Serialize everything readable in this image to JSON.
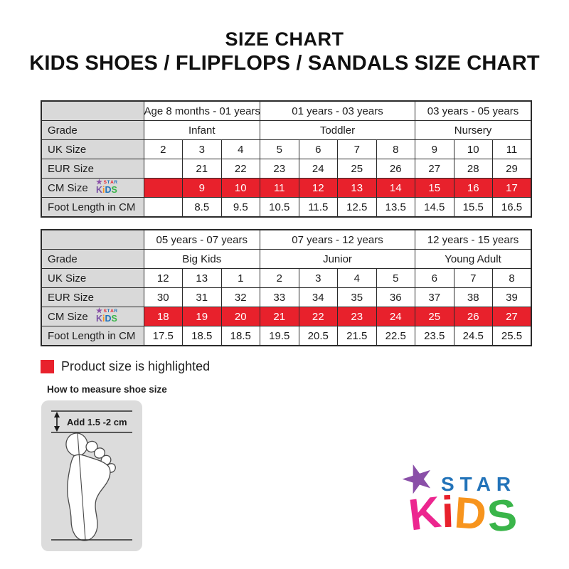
{
  "title": "SIZE CHART",
  "subtitle": "KIDS SHOES / FLIPFLOPS / SANDALS SIZE CHART",
  "colors": {
    "highlight": "#e8212c",
    "label_bg": "#d9d9d9",
    "border": "#2b2b2b"
  },
  "tables": [
    {
      "name": "size-table-infant-toddler-nursery",
      "data_columns": 10,
      "rows": [
        {
          "cells": [
            {
              "t": "",
              "cls": "label"
            },
            {
              "t": "Age 8 months - 01 years",
              "span": 3,
              "cls": "grp"
            },
            {
              "t": "01 years - 03 years",
              "span": 4,
              "cls": "grp"
            },
            {
              "t": "03 years - 05 years",
              "span": 3,
              "cls": "grp"
            }
          ]
        },
        {
          "cells": [
            {
              "t": "Grade",
              "cls": "label"
            },
            {
              "t": "Infant",
              "span": 3,
              "cls": "grp"
            },
            {
              "t": "Toddler",
              "span": 4,
              "cls": "grp"
            },
            {
              "t": "Nursery",
              "span": 3,
              "cls": "grp"
            }
          ]
        },
        {
          "cells": [
            {
              "t": "UK Size",
              "cls": "label"
            },
            {
              "t": "2"
            },
            {
              "t": "3"
            },
            {
              "t": "4"
            },
            {
              "t": "5"
            },
            {
              "t": "6"
            },
            {
              "t": "7"
            },
            {
              "t": "8"
            },
            {
              "t": "9"
            },
            {
              "t": "10"
            },
            {
              "t": "11"
            }
          ]
        },
        {
          "cells": [
            {
              "t": "EUR Size",
              "cls": "label"
            },
            {
              "t": ""
            },
            {
              "t": "21"
            },
            {
              "t": "22"
            },
            {
              "t": "23"
            },
            {
              "t": "24"
            },
            {
              "t": "25"
            },
            {
              "t": "26"
            },
            {
              "t": "27"
            },
            {
              "t": "28"
            },
            {
              "t": "29"
            }
          ]
        },
        {
          "cells": [
            {
              "t": "CM Size",
              "cls": "label logo-cell",
              "logo": true
            },
            {
              "t": "",
              "cls": "hl"
            },
            {
              "t": "9",
              "cls": "hl"
            },
            {
              "t": "10",
              "cls": "hl"
            },
            {
              "t": "11",
              "cls": "hl"
            },
            {
              "t": "12",
              "cls": "hl"
            },
            {
              "t": "13",
              "cls": "hl"
            },
            {
              "t": "14",
              "cls": "hl"
            },
            {
              "t": "15",
              "cls": "hl"
            },
            {
              "t": "16",
              "cls": "hl"
            },
            {
              "t": "17",
              "cls": "hl"
            }
          ]
        },
        {
          "cells": [
            {
              "t": "Foot Length in CM",
              "cls": "label"
            },
            {
              "t": ""
            },
            {
              "t": "8.5"
            },
            {
              "t": "9.5"
            },
            {
              "t": "10.5"
            },
            {
              "t": "11.5"
            },
            {
              "t": "12.5"
            },
            {
              "t": "13.5"
            },
            {
              "t": "14.5"
            },
            {
              "t": "15.5"
            },
            {
              "t": "16.5"
            }
          ]
        }
      ]
    },
    {
      "name": "size-table-bigkids-junior-youngadult",
      "data_columns": 10,
      "rows": [
        {
          "cells": [
            {
              "t": "",
              "cls": "label"
            },
            {
              "t": "05 years - 07 years",
              "span": 3,
              "cls": "grp"
            },
            {
              "t": "07 years - 12 years",
              "span": 4,
              "cls": "grp"
            },
            {
              "t": "12 years - 15 years",
              "span": 3,
              "cls": "grp"
            }
          ]
        },
        {
          "cells": [
            {
              "t": "Grade",
              "cls": "label"
            },
            {
              "t": "Big Kids",
              "span": 3,
              "cls": "grp"
            },
            {
              "t": "Junior",
              "span": 4,
              "cls": "grp"
            },
            {
              "t": "Young Adult",
              "span": 3,
              "cls": "grp"
            }
          ]
        },
        {
          "cells": [
            {
              "t": "UK Size",
              "cls": "label"
            },
            {
              "t": "12"
            },
            {
              "t": "13"
            },
            {
              "t": "1"
            },
            {
              "t": "2"
            },
            {
              "t": "3"
            },
            {
              "t": "4"
            },
            {
              "t": "5"
            },
            {
              "t": "6"
            },
            {
              "t": "7"
            },
            {
              "t": "8"
            }
          ]
        },
        {
          "cells": [
            {
              "t": "EUR Size",
              "cls": "label"
            },
            {
              "t": "30"
            },
            {
              "t": "31"
            },
            {
              "t": "32"
            },
            {
              "t": "33"
            },
            {
              "t": "34"
            },
            {
              "t": "35"
            },
            {
              "t": "36"
            },
            {
              "t": "37"
            },
            {
              "t": "38"
            },
            {
              "t": "39"
            }
          ]
        },
        {
          "cells": [
            {
              "t": "CM Size",
              "cls": "label logo-cell",
              "logo": true
            },
            {
              "t": "18",
              "cls": "hl"
            },
            {
              "t": "19",
              "cls": "hl"
            },
            {
              "t": "20",
              "cls": "hl"
            },
            {
              "t": "21",
              "cls": "hl"
            },
            {
              "t": "22",
              "cls": "hl"
            },
            {
              "t": "23",
              "cls": "hl"
            },
            {
              "t": "24",
              "cls": "hl"
            },
            {
              "t": "25",
              "cls": "hl"
            },
            {
              "t": "26",
              "cls": "hl"
            },
            {
              "t": "27",
              "cls": "hl"
            }
          ]
        },
        {
          "cells": [
            {
              "t": "Foot Length in CM",
              "cls": "label"
            },
            {
              "t": "17.5"
            },
            {
              "t": "18.5"
            },
            {
              "t": "18.5"
            },
            {
              "t": "19.5"
            },
            {
              "t": "20.5"
            },
            {
              "t": "21.5"
            },
            {
              "t": "22.5"
            },
            {
              "t": "23.5"
            },
            {
              "t": "24.5"
            },
            {
              "t": "25.5"
            }
          ]
        }
      ]
    }
  ],
  "legend": {
    "text": "Product size is highlighted"
  },
  "measure": {
    "heading": "How to measure shoe size",
    "note": "Add 1.5 -2 cm"
  },
  "mini_logo": {
    "star_glyph": "★",
    "star_color": "#8a4fa8",
    "top": [
      {
        "c": "S",
        "color": "#e8212c"
      },
      {
        "c": "T",
        "color": "#2273b9"
      },
      {
        "c": "A",
        "color": "#e8212c"
      },
      {
        "c": "R",
        "color": "#2273b9"
      }
    ],
    "bottom": [
      {
        "c": "K",
        "color": "#7b52a5"
      },
      {
        "c": "i",
        "color": "#f7941d"
      },
      {
        "c": "D",
        "color": "#2273b9"
      },
      {
        "c": "S",
        "color": "#3ab54a"
      }
    ]
  },
  "logo": {
    "star_glyph": "★",
    "star_color": "#8a4fa8",
    "star_word": "STAR",
    "star_word_color": "#2273b9",
    "kids_letters": [
      {
        "c": "K",
        "color": "#ec268f"
      },
      {
        "c": "i",
        "color": "#e8212c"
      },
      {
        "c": "D",
        "color": "#f7941d"
      },
      {
        "c": "S",
        "color": "#3ab54a"
      }
    ]
  }
}
